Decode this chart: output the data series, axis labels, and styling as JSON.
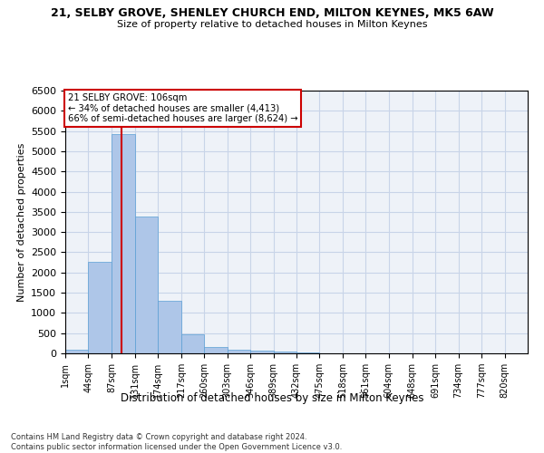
{
  "title": "21, SELBY GROVE, SHENLEY CHURCH END, MILTON KEYNES, MK5 6AW",
  "subtitle": "Size of property relative to detached houses in Milton Keynes",
  "xlabel": "Distribution of detached houses by size in Milton Keynes",
  "ylabel": "Number of detached properties",
  "footer_line1": "Contains HM Land Registry data © Crown copyright and database right 2024.",
  "footer_line2": "Contains public sector information licensed under the Open Government Licence v3.0.",
  "annotation_title": "21 SELBY GROVE: 106sqm",
  "annotation_line1": "← 34% of detached houses are smaller (4,413)",
  "annotation_line2": "66% of semi-detached houses are larger (8,624) →",
  "property_line_x": 106,
  "bar_edges": [
    1,
    44,
    87,
    131,
    174,
    217,
    260,
    303,
    346,
    389,
    432,
    475,
    518,
    561,
    604,
    648,
    691,
    734,
    777,
    820,
    863
  ],
  "bar_heights": [
    80,
    2270,
    5430,
    3390,
    1310,
    480,
    165,
    90,
    65,
    40,
    30,
    10,
    5,
    5,
    3,
    2,
    1,
    1,
    1,
    1
  ],
  "bar_color": "#aec6e8",
  "bar_edge_color": "#5a9fd4",
  "property_line_color": "#cc0000",
  "annotation_box_color": "#cc0000",
  "grid_color": "#c8d4e8",
  "background_color": "#eef2f8",
  "ylim": [
    0,
    6500
  ],
  "yticks": [
    0,
    500,
    1000,
    1500,
    2000,
    2500,
    3000,
    3500,
    4000,
    4500,
    5000,
    5500,
    6000,
    6500
  ]
}
